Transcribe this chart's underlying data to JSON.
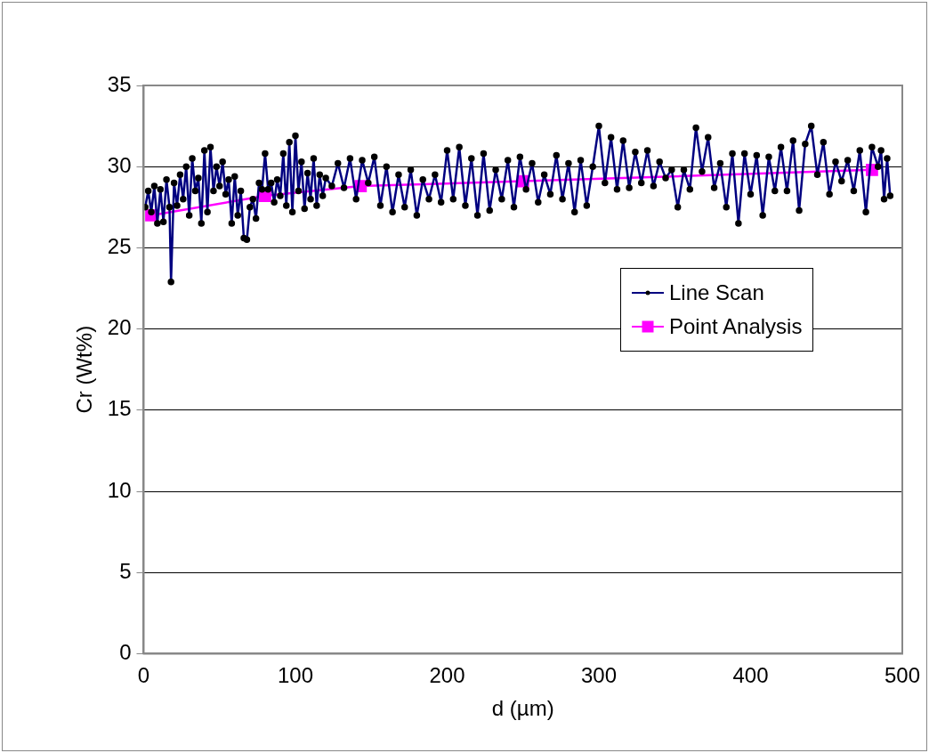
{
  "chart_data": {
    "type": "line",
    "xlabel": "d (µm)",
    "ylabel": "Cr (Wt%)",
    "xlim": [
      0,
      500
    ],
    "xticks": [
      0,
      100,
      200,
      300,
      400,
      500
    ],
    "ylim": [
      0,
      35
    ],
    "yticks": [
      0,
      5,
      10,
      15,
      20,
      25,
      30,
      35
    ],
    "grid": "y",
    "legend": "right",
    "line_style": "solid",
    "series": [
      {
        "name": "Line Scan",
        "color": "#000080",
        "marker": "circle",
        "x": [
          1,
          3,
          5,
          7,
          9,
          11,
          13,
          15,
          17,
          18,
          20,
          22,
          24,
          26,
          28,
          30,
          32,
          34,
          36,
          38,
          40,
          42,
          44,
          46,
          48,
          50,
          52,
          54,
          56,
          58,
          60,
          62,
          64,
          66,
          68,
          70,
          72,
          74,
          76,
          78,
          80,
          82,
          84,
          86,
          88,
          90,
          92,
          94,
          96,
          98,
          100,
          102,
          104,
          106,
          108,
          110,
          112,
          114,
          116,
          118,
          120,
          124,
          128,
          132,
          136,
          140,
          144,
          148,
          152,
          156,
          160,
          164,
          168,
          172,
          176,
          180,
          184,
          188,
          192,
          196,
          200,
          204,
          208,
          212,
          216,
          220,
          224,
          228,
          232,
          236,
          240,
          244,
          248,
          252,
          256,
          260,
          264,
          268,
          272,
          276,
          280,
          284,
          288,
          292,
          296,
          300,
          304,
          308,
          312,
          316,
          320,
          324,
          328,
          332,
          336,
          340,
          344,
          348,
          352,
          356,
          360,
          364,
          368,
          372,
          376,
          380,
          384,
          388,
          392,
          396,
          400,
          404,
          408,
          412,
          416,
          420,
          424,
          428,
          432,
          436,
          440,
          444,
          448,
          452,
          456,
          460,
          464,
          468,
          472,
          476,
          480,
          484,
          486,
          488,
          490,
          492
        ],
        "values": [
          27.5,
          28.5,
          27.2,
          28.8,
          26.5,
          28.6,
          26.6,
          29.2,
          27.5,
          22.9,
          29.0,
          27.6,
          29.5,
          28.0,
          30.0,
          27.0,
          30.5,
          28.5,
          29.3,
          26.5,
          31.0,
          27.2,
          31.2,
          28.5,
          30.0,
          28.8,
          30.3,
          28.3,
          29.2,
          26.5,
          29.4,
          27.0,
          28.5,
          25.6,
          25.5,
          27.5,
          28.0,
          26.8,
          29.0,
          28.6,
          30.8,
          28.6,
          29.0,
          27.8,
          29.2,
          28.2,
          30.8,
          27.6,
          31.5,
          27.2,
          31.9,
          28.5,
          30.3,
          27.4,
          29.6,
          28.0,
          30.5,
          27.6,
          29.5,
          28.2,
          29.3,
          28.8,
          30.2,
          28.7,
          30.5,
          28.0,
          30.4,
          29.0,
          30.6,
          27.6,
          30.0,
          27.2,
          29.5,
          27.5,
          29.8,
          27.0,
          29.2,
          28.0,
          29.5,
          27.8,
          31.0,
          28.0,
          31.2,
          27.6,
          30.5,
          27.0,
          30.8,
          27.3,
          29.8,
          28.0,
          30.4,
          27.5,
          30.6,
          28.6,
          30.2,
          27.8,
          29.5,
          28.3,
          30.7,
          28.0,
          30.2,
          27.2,
          30.4,
          27.6,
          30.0,
          32.5,
          29.0,
          31.8,
          28.6,
          31.6,
          28.7,
          30.9,
          29.0,
          31.0,
          28.8,
          30.3,
          29.3,
          29.8,
          27.5,
          29.8,
          28.6,
          32.4,
          29.7,
          31.8,
          28.7,
          30.2,
          27.5,
          30.8,
          26.5,
          30.8,
          28.3,
          30.7,
          27.0,
          30.6,
          28.5,
          31.2,
          28.5,
          31.6,
          27.3,
          31.4,
          32.5,
          29.5,
          31.5,
          28.3,
          30.3,
          29.1,
          30.4,
          28.5,
          31.0,
          27.2,
          31.2,
          30.0,
          31.0,
          28.0,
          30.5,
          28.2
        ]
      },
      {
        "name": "Point Analysis",
        "color": "#ff00ff",
        "marker": "square",
        "x": [
          5,
          80,
          143,
          250,
          480
        ],
        "values": [
          27.0,
          28.2,
          28.8,
          29.1,
          29.8
        ]
      }
    ]
  }
}
